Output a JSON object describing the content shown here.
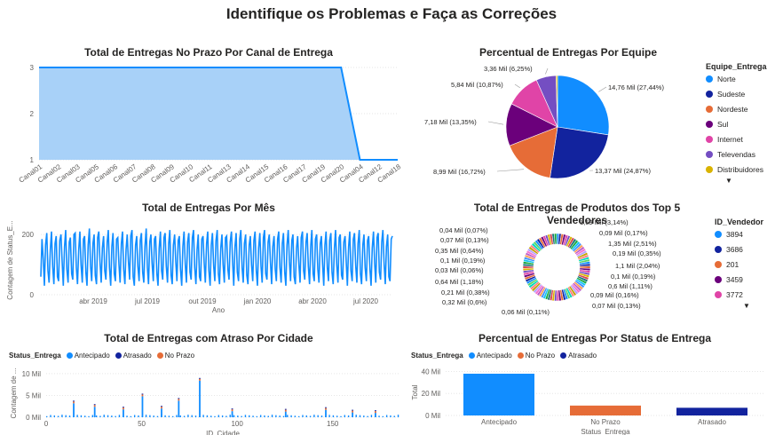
{
  "page": {
    "title": "Identifique os Problemas e Faça as Correções"
  },
  "legend_more_icon": "caret-down",
  "chart_data": [
    {
      "id": "canal",
      "type": "area",
      "title": "Total de Entregas No Prazo Por Canal de Entrega",
      "xlabel": "",
      "ylabel": "",
      "categories": [
        "Canal01",
        "Canal02",
        "Canal03",
        "Canal05",
        "Canal06",
        "Canal07",
        "Canal08",
        "Canal09",
        "Canal10",
        "Canal11",
        "Canal13",
        "Canal14",
        "Canal15",
        "Canal16",
        "Canal17",
        "Canal19",
        "Canal20",
        "Canal04",
        "Canal12",
        "Canal18"
      ],
      "values": [
        3,
        3,
        3,
        3,
        3,
        3,
        3,
        3,
        3,
        3,
        3,
        3,
        3,
        3,
        3,
        3,
        3,
        1,
        1,
        1
      ],
      "ylim": [
        1,
        3
      ],
      "yticks": [
        "1",
        "2",
        "3"
      ],
      "color": "#118DFF",
      "fill": "#A8D1F8"
    },
    {
      "id": "equipe",
      "type": "pie",
      "title": "Percentual de Entregas Por Equipe",
      "legend_title": "Equipe_Entrega",
      "slices": [
        {
          "name": "Norte",
          "label": "14,76 Mil (27,44%)",
          "value": 14.76,
          "color": "#118DFF"
        },
        {
          "name": "Sudeste",
          "label": "13,37 Mil (24,87%)",
          "value": 13.37,
          "color": "#12239E"
        },
        {
          "name": "Nordeste",
          "label": "8,99 Mil (16,72%)",
          "value": 8.99,
          "color": "#E66C37"
        },
        {
          "name": "Sul",
          "label": "7,18 Mil (13,35%)",
          "value": 7.18,
          "color": "#6B007B"
        },
        {
          "name": "Internet",
          "label": "5,84 Mil (10,87%)",
          "value": 5.84,
          "color": "#E044A7"
        },
        {
          "name": "Televendas",
          "label": "3,36 Mil (6,25%)",
          "value": 3.36,
          "color": "#744EC2"
        },
        {
          "name": "Distribuidores",
          "label": "",
          "value": 0.25,
          "color": "#D9B300"
        }
      ]
    },
    {
      "id": "mes",
      "type": "line",
      "title": "Total de Entregas Por Mês",
      "xlabel": "Ano",
      "ylabel": "Contagem de Status_E...",
      "xticks": [
        "abr 2019",
        "jul 2019",
        "out 2019",
        "jan 2020",
        "abr 2020",
        "jul 2020"
      ],
      "yticks": [
        "0",
        "200"
      ],
      "ylim": [
        0,
        230
      ],
      "series": [
        {
          "values": [
            60,
            185,
            120,
            30,
            165,
            205,
            80,
            40,
            150,
            210,
            95,
            35,
            170,
            195,
            60,
            45,
            180,
            200,
            110,
            30,
            160,
            215,
            85,
            40,
            175,
            190,
            70,
            50,
            200,
            205,
            90,
            35,
            150,
            210,
            100,
            40,
            185,
            195,
            75,
            30,
            165,
            220,
            95,
            45,
            170,
            200,
            65,
            35,
            190,
            210,
            105,
            40,
            155,
            195,
            80,
            50,
            175,
            215,
            90,
            30,
            160,
            205,
            70,
            45,
            185,
            190,
            100,
            40,
            170,
            210,
            85,
            35,
            150,
            200,
            110,
            50,
            195,
            215,
            60,
            30,
            165,
            195,
            95,
            45,
            180,
            205,
            75,
            40,
            160,
            220,
            90,
            35,
            175,
            200,
            105,
            45,
            185,
            195,
            70,
            30,
            155,
            210,
            80,
            50,
            190,
            205,
            95,
            40,
            170,
            215,
            65,
            35,
            165,
            200,
            110,
            45,
            180,
            195,
            85,
            30,
            160,
            210,
            100,
            40,
            175,
            205,
            75,
            50,
            190,
            215,
            90,
            35,
            150,
            200,
            60,
            45,
            185,
            195,
            105,
            40,
            170,
            210,
            80,
            30,
            165,
            205,
            95,
            45,
            180,
            215,
            70,
            35,
            155,
            200,
            100,
            40,
            190,
            195,
            85,
            50,
            175,
            210,
            110,
            30,
            160,
            205,
            75,
            45,
            185,
            215,
            90,
            40,
            170,
            200,
            65,
            35,
            165,
            195,
            100,
            45,
            180,
            210,
            80,
            30,
            155,
            205,
            95,
            40,
            190,
            215,
            70,
            50,
            175,
            200,
            105,
            35,
            160,
            195,
            85,
            45,
            185,
            210,
            90,
            40,
            170,
            205,
            75,
            30,
            165,
            215,
            110,
            45,
            180,
            200,
            60,
            35,
            155,
            195,
            100,
            40,
            190,
            210,
            80,
            50,
            175,
            205,
            95,
            35,
            160,
            215,
            70,
            45,
            185,
            200,
            85,
            40,
            170,
            195,
            105,
            30,
            165,
            210,
            90,
            45,
            180,
            205,
            75,
            35,
            155,
            215,
            100,
            40,
            190,
            200,
            65,
            50,
            175,
            195,
            110,
            30,
            160,
            210,
            80,
            45,
            185,
            205,
            95,
            40,
            170,
            215,
            70,
            35,
            165,
            200,
            90,
            45,
            180,
            195,
            85,
            30,
            155,
            210,
            105,
            40,
            190,
            205,
            75,
            50,
            175,
            215,
            100,
            35,
            160,
            200,
            60,
            45,
            185,
            195
          ]
        }
      ],
      "color": "#118DFF"
    },
    {
      "id": "vendedores",
      "type": "pie",
      "title": "Total de Entregas de Produtos dos Top 5 Vendedores",
      "legend_title": "ID_Vendedor",
      "legend": [
        {
          "name": "3894",
          "color": "#118DFF"
        },
        {
          "name": "3686",
          "color": "#12239E"
        },
        {
          "name": "201",
          "color": "#E66C37"
        },
        {
          "name": "3459",
          "color": "#6B007B"
        },
        {
          "name": "3772",
          "color": "#E044A7"
        }
      ],
      "labels_right": [
        "1,69 Mil (3,14%)",
        "0,09 Mil (0,17%)",
        "1,35 Mil (2,51%)",
        "0,19 Mil (0,35%)",
        "1,1 Mil (2,04%)",
        "0,1 Mil (0,19%)",
        "0,6 Mil (1,11%)",
        "0,09 Mil (0,16%)",
        "0,07 Mil (0,13%)",
        "0,06 Mil (0,11%)"
      ],
      "labels_left": [
        "0,04 Mil (0,07%)",
        "0,07 Mil (0,13%)",
        "0,35 Mil (0,64%)",
        "0,1 Mil (0,19%)",
        "0,03 Mil (0,06%)",
        "0,64 Mil (1,18%)",
        "0,21 Mil (0,38%)",
        "0,32 Mil (0,6%)"
      ],
      "palette": [
        "#118DFF",
        "#12239E",
        "#E66C37",
        "#6B007B",
        "#E044A7",
        "#744EC2",
        "#D9B300",
        "#D64550",
        "#197278",
        "#1AAB40",
        "#15C6F4",
        "#4092FF",
        "#FFA058",
        "#BE5DC9",
        "#F472D0",
        "#B5A1FF",
        "#C4A200",
        "#FF8080",
        "#00DBBC",
        "#5BD667"
      ]
    },
    {
      "id": "cidade",
      "type": "bar",
      "title": "Total de Entregas com Atraso Por Cidade",
      "legend_title": "Status_Entrega",
      "legend": [
        {
          "name": "Antecipado",
          "color": "#118DFF"
        },
        {
          "name": "Atrasado",
          "color": "#12239E"
        },
        {
          "name": "No Prazo",
          "color": "#E66C37"
        }
      ],
      "xlabel": "ID_Cidade",
      "ylabel": "Contagem de ...",
      "xticks": [
        "0",
        "50",
        "100",
        "150"
      ],
      "yticks": [
        "0 Mil",
        "5 Mil",
        "10 Mil"
      ],
      "ylim": [
        0,
        11
      ],
      "spikes": [
        {
          "x": 14,
          "v": 3.2
        },
        {
          "x": 25,
          "v": 2.4
        },
        {
          "x": 40,
          "v": 1.8
        },
        {
          "x": 50,
          "v": 4.8
        },
        {
          "x": 60,
          "v": 2.0
        },
        {
          "x": 69,
          "v": 3.8
        },
        {
          "x": 80,
          "v": 8.4
        },
        {
          "x": 97,
          "v": 1.4
        },
        {
          "x": 125,
          "v": 1.3
        },
        {
          "x": 146,
          "v": 1.7
        },
        {
          "x": 160,
          "v": 1.1
        },
        {
          "x": 172,
          "v": 1.0
        }
      ]
    },
    {
      "id": "status",
      "type": "bar",
      "title": "Percentual de Entregas Por Status de Entrega",
      "legend_title": "Status_Entrega",
      "legend": [
        {
          "name": "Antecipado",
          "color": "#118DFF"
        },
        {
          "name": "No Prazo",
          "color": "#E66C37"
        },
        {
          "name": "Atrasado",
          "color": "#12239E"
        }
      ],
      "categories": [
        "Antecipado",
        "No Prazo",
        "Atrasado"
      ],
      "values": [
        38,
        9,
        7
      ],
      "colors": [
        "#118DFF",
        "#E66C37",
        "#12239E"
      ],
      "xlabel": "Status_Entrega",
      "ylabel": "Total",
      "yticks": [
        "0 Mil",
        "20 Mil",
        "40 Mil"
      ],
      "ylim": [
        0,
        42
      ]
    }
  ]
}
